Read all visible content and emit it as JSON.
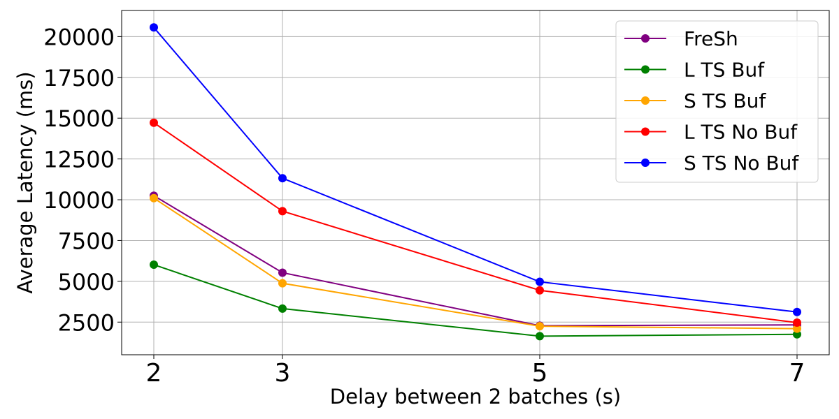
{
  "chart_data": {
    "type": "line",
    "title": "",
    "xlabel": "Delay between 2 batches (s)",
    "ylabel": "Average Latency (ms)",
    "x": [
      2,
      3,
      5,
      7
    ],
    "x_ticks": [
      "2",
      "3",
      "5",
      "7"
    ],
    "y_ticks": [
      "2500",
      "5000",
      "7500",
      "10000",
      "12500",
      "15000",
      "17500",
      "20000"
    ],
    "xlim": [
      1.75,
      7.25
    ],
    "ylim": [
      500,
      21600
    ],
    "grid": true,
    "legend_position": "top-right",
    "series": [
      {
        "name": "FreSh",
        "color": "#800080",
        "values": [
          10250,
          5530,
          2280,
          2330
        ]
      },
      {
        "name": "L TS Buf",
        "color": "#008000",
        "values": [
          6020,
          3330,
          1640,
          1750
        ]
      },
      {
        "name": "S TS Buf",
        "color": "#ffa500",
        "values": [
          10100,
          4880,
          2250,
          2100
        ]
      },
      {
        "name": "L TS No Buf",
        "color": "#ff0000",
        "values": [
          14720,
          9300,
          4450,
          2470
        ]
      },
      {
        "name": "S TS No Buf",
        "color": "#0000ff",
        "values": [
          20560,
          11320,
          4970,
          3120
        ]
      }
    ]
  }
}
